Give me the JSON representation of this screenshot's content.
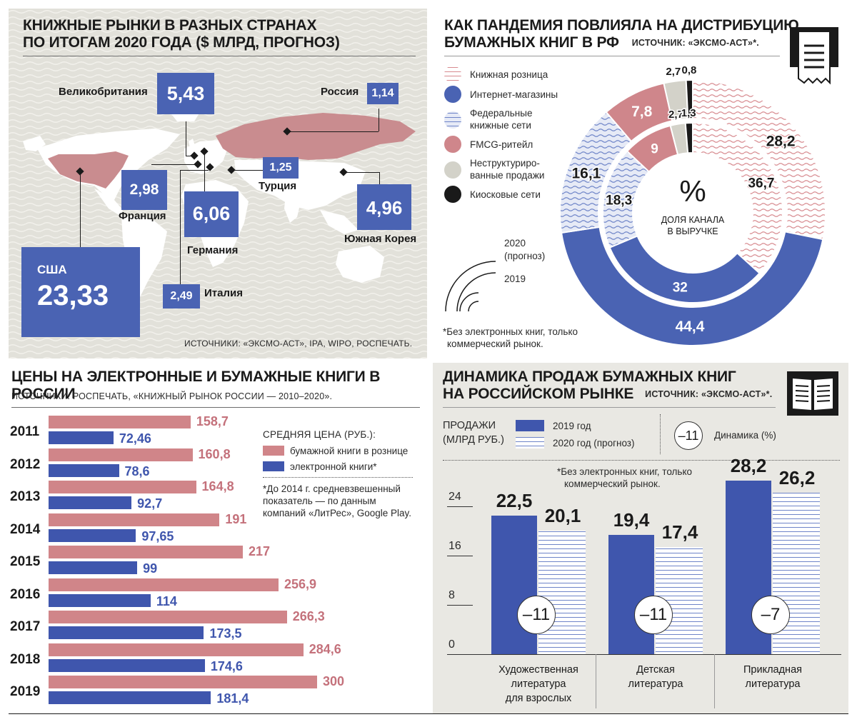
{
  "map": {
    "title_line1": "КНИЖНЫЕ РЫНКИ В РАЗНЫХ СТРАНАХ",
    "title_line2": "ПО ИТОГАМ 2020 ГОДА ($ МЛРД, ПРОГНОЗ)",
    "source": "ИСТОЧНИКИ: «ЭКСМО-АСТ», IPA, WIPO, РОСПЕЧАТЬ.",
    "countries": [
      {
        "name": "США",
        "value": "23,33"
      },
      {
        "name": "Великобритания",
        "value": "5,43"
      },
      {
        "name": "Россия",
        "value": "1,14"
      },
      {
        "name": "Франция",
        "value": "2,98"
      },
      {
        "name": "Германия",
        "value": "6,06"
      },
      {
        "name": "Италия",
        "value": "2,49"
      },
      {
        "name": "Турция",
        "value": "1,25"
      },
      {
        "name": "Южная Корея",
        "value": "4,96"
      }
    ],
    "colors": {
      "usa": "#c98c8f",
      "russia": "#c98c8f",
      "book": "#4a63b3"
    }
  },
  "donut": {
    "title_line1": "КАК ПАНДЕМИЯ ПОВЛИЯЛА НА ДИСТРИБУЦИЮ",
    "title_line2": "БУМАЖНЫХ КНИГ В РФ",
    "source": "ИСТОЧНИК: «ЭКСМО-АСТ»*.",
    "center_symbol": "%",
    "center_label_line1": "ДОЛЯ КАНАЛА",
    "center_label_line2": "В ВЫРУЧКЕ",
    "legend": [
      {
        "label": "Книжная розница",
        "icon": "wavy-red"
      },
      {
        "label": "Интернет-магазины",
        "icon": "solid-blue"
      },
      {
        "label": "Федеральные книжные сети",
        "line1": "Федеральные",
        "line2": "книжные сети",
        "icon": "wavy-blue"
      },
      {
        "label": "FMCG-ритейл",
        "icon": "solid-pink"
      },
      {
        "label": "Неструктурированные продажи",
        "line1": "Неструктуриро-",
        "line2": "ванные продажи",
        "icon": "solid-grey"
      },
      {
        "label": "Киосковые сети",
        "icon": "solid-black"
      }
    ],
    "ring_legend": {
      "outer": "2020",
      "outer_sub": "(прогноз)",
      "inner": "2019"
    },
    "footnote_line1": "*Без электронных книг, только",
    "footnote_line2": "коммерческий рынок.",
    "chart_data": {
      "type": "pie",
      "title": "Доля канала в выручке",
      "categories": [
        "Книжная розница",
        "Интернет-магазины",
        "Федеральные книжные сети",
        "FMCG-ритейл",
        "Неструктурированные продажи",
        "Киосковые сети"
      ],
      "series": [
        {
          "name": "2020 (прогноз)",
          "values": [
            28.2,
            44.4,
            16.1,
            7.8,
            2.7,
            0.8
          ],
          "labels": [
            "28,2",
            "44,4",
            "16,1",
            "7,8",
            "2,7",
            "0,8"
          ]
        },
        {
          "name": "2019",
          "values": [
            36.7,
            32,
            18.3,
            9,
            2.7,
            1.3
          ],
          "labels": [
            "36,7",
            "32",
            "18,3",
            "9",
            "2,7",
            "1,3"
          ]
        }
      ],
      "colors": [
        "#d78a8f",
        "#4a63b3",
        "#6e84c8",
        "#cf868b",
        "#d3d2c9",
        "#1a1a1a"
      ]
    }
  },
  "prices": {
    "title": "ЦЕНЫ НА ЭЛЕКТРОННЫЕ И БУМАЖНЫЕ КНИГИ В РОССИИ",
    "source": "ИСТОЧНИКИ: РОСПЕЧАТЬ,  «КНИЖНЫЙ РЫНОК РОССИИ — 2010–2020».",
    "legend_title": "СРЕДНЯЯ ЦЕНА (РУБ.):",
    "legend_paper": "бумажной книги в рознице",
    "legend_ebook": "электронной книги*",
    "footnote_line1": "*До 2014 г. средневзвешенный",
    "footnote_line2": "показатель — по данным",
    "footnote_line3": "компаний «ЛитРес», Google Play.",
    "chart_data": {
      "type": "bar",
      "orientation": "horizontal",
      "categories": [
        "2011",
        "2012",
        "2013",
        "2014",
        "2015",
        "2016",
        "2017",
        "2018",
        "2019"
      ],
      "series": [
        {
          "name": "бумажной книги в рознице",
          "values": [
            158.7,
            160.8,
            164.8,
            191,
            217,
            256.9,
            266.3,
            284.6,
            300
          ],
          "labels": [
            "158,7",
            "160,8",
            "164,8",
            "191",
            "217",
            "256,9",
            "266,3",
            "284,6",
            "300"
          ],
          "color": "#d08589"
        },
        {
          "name": "электронной книги*",
          "values": [
            72.46,
            78.6,
            92.7,
            97.65,
            99,
            114,
            173.5,
            174.6,
            181.4
          ],
          "labels": [
            "72,46",
            "78,6",
            "92,7",
            "97,65",
            "99",
            "114",
            "173,5",
            "174,6",
            "181,4"
          ],
          "color": "#3f56ad"
        }
      ],
      "xlim": [
        0,
        300
      ]
    }
  },
  "sales": {
    "title_line1": "ДИНАМИКА ПРОДАЖ БУМАЖНЫХ КНИГ",
    "title_line2": "НА РОССИЙСКОМ РЫНКЕ",
    "source": "ИСТОЧНИК: «ЭКСМО-АСТ»*.",
    "legend_label_line1": "ПРОДАЖИ",
    "legend_label_line2": "(МЛРД РУБ.)",
    "legend_2019": "2019 год",
    "legend_2020": "2020 год (прогноз)",
    "legend_dynamic_sample": "–11",
    "legend_dynamic": "Динамика (%)",
    "footnote_line1": "*Без электронных книг, только",
    "footnote_line2": "коммерческий рынок.",
    "chart_data": {
      "type": "bar",
      "title": "Динамика продаж бумажных книг на российском рынке",
      "ylabel": "Продажи (млрд руб.)",
      "ylim": [
        0,
        30
      ],
      "yticks": [
        "0",
        "8",
        "16",
        "24"
      ],
      "categories": [
        "Художественная литература для взрослых",
        "Детская литература",
        "Прикладная литература"
      ],
      "category_lines": [
        [
          "Художественная",
          "литература",
          "для взрослых"
        ],
        [
          "Детская",
          "литература"
        ],
        [
          "Прикладная",
          "литература"
        ]
      ],
      "series": [
        {
          "name": "2019 год",
          "values": [
            22.5,
            19.4,
            28.2
          ],
          "labels": [
            "22,5",
            "19,4",
            "28,2"
          ]
        },
        {
          "name": "2020 год (прогноз)",
          "values": [
            20.1,
            17.4,
            26.2
          ],
          "labels": [
            "20,1",
            "17,4",
            "26,2"
          ]
        }
      ],
      "dynamics": [
        "–11",
        "–11",
        "–7"
      ]
    }
  }
}
